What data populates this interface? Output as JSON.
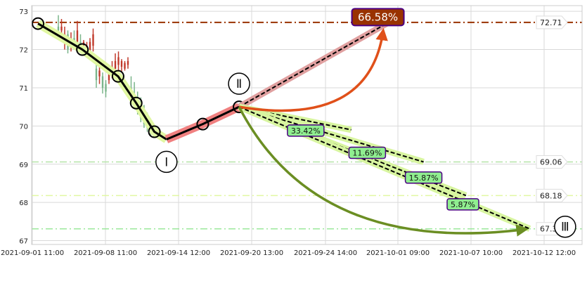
{
  "chart_data": {
    "type": "candlestick",
    "x_axis": {
      "type": "time",
      "ticks": [
        "2021-09-01 11:00",
        "2021-09-08 11:00",
        "2021-09-14 12:00",
        "2021-09-20 13:00",
        "2021-09-24 14:00",
        "2021-10-01 09:00",
        "2021-10-07 10:00",
        "2021-10-12 12:00"
      ]
    },
    "y_axis": {
      "ticks": [
        "67",
        "68",
        "69",
        "70",
        "71",
        "72",
        "73"
      ],
      "ylim": [
        66.9,
        73.15
      ]
    },
    "grid": true,
    "candles": [
      {
        "o": 72.6,
        "h": 72.9,
        "l": 72.3,
        "c": 72.5
      },
      {
        "o": 72.5,
        "h": 72.8,
        "l": 72.3,
        "c": 72.6
      },
      {
        "o": 72.3,
        "h": 72.6,
        "l": 72.0,
        "c": 72.4
      },
      {
        "o": 72.4,
        "h": 72.5,
        "l": 71.9,
        "c": 72.0
      },
      {
        "o": 72.1,
        "h": 72.45,
        "l": 71.95,
        "c": 72.3
      },
      {
        "o": 72.3,
        "h": 72.5,
        "l": 72.0,
        "c": 72.1
      },
      {
        "o": 72.2,
        "h": 72.75,
        "l": 72.05,
        "c": 72.5
      },
      {
        "o": 72.2,
        "h": 72.4,
        "l": 71.95,
        "c": 72.05
      },
      {
        "o": 72.1,
        "h": 72.25,
        "l": 71.9,
        "c": 72.2
      },
      {
        "o": 72.0,
        "h": 72.2,
        "l": 71.85,
        "c": 72.1
      },
      {
        "o": 71.95,
        "h": 72.3,
        "l": 71.8,
        "c": 72.2
      },
      {
        "o": 72.1,
        "h": 72.55,
        "l": 71.95,
        "c": 72.4
      },
      {
        "o": 71.5,
        "h": 71.65,
        "l": 71.0,
        "c": 71.2
      },
      {
        "o": 71.3,
        "h": 71.55,
        "l": 71.1,
        "c": 71.45
      },
      {
        "o": 71.3,
        "h": 71.4,
        "l": 70.85,
        "c": 71.0
      },
      {
        "o": 71.1,
        "h": 71.2,
        "l": 70.75,
        "c": 70.9
      },
      {
        "o": 71.2,
        "h": 71.55,
        "l": 71.1,
        "c": 71.4
      },
      {
        "o": 71.35,
        "h": 71.7,
        "l": 71.25,
        "c": 71.55
      },
      {
        "o": 71.5,
        "h": 71.9,
        "l": 71.3,
        "c": 71.7
      },
      {
        "o": 71.6,
        "h": 71.95,
        "l": 71.45,
        "c": 71.8
      },
      {
        "o": 71.55,
        "h": 71.75,
        "l": 71.4,
        "c": 71.7
      },
      {
        "o": 71.5,
        "h": 71.7,
        "l": 71.45,
        "c": 71.65
      },
      {
        "o": 71.6,
        "h": 71.8,
        "l": 71.5,
        "c": 71.7
      },
      {
        "o": 71.0,
        "h": 71.3,
        "l": 70.55,
        "c": 70.7
      },
      {
        "o": 70.8,
        "h": 71.15,
        "l": 70.45,
        "c": 70.6
      },
      {
        "o": 70.6,
        "h": 70.9,
        "l": 70.3,
        "c": 70.5
      },
      {
        "o": 70.4,
        "h": 70.75,
        "l": 70.1,
        "c": 70.2
      },
      {
        "o": 70.2,
        "h": 70.55,
        "l": 69.95,
        "c": 70.05
      },
      {
        "o": 70.1,
        "h": 70.35,
        "l": 69.85,
        "c": 69.95
      },
      {
        "o": 69.95,
        "h": 70.2,
        "l": 69.75,
        "c": 69.85
      },
      {
        "o": 69.8,
        "h": 70.05,
        "l": 69.7,
        "c": 69.75
      }
    ],
    "price_levels": [
      {
        "value": 72.71,
        "label": "72.71",
        "color": "#993300",
        "style": "dashdot"
      },
      {
        "value": 69.06,
        "label": "69.06",
        "color": "#b5e3a8",
        "style": "dashdot"
      },
      {
        "value": 68.18,
        "label": "68.18",
        "color": "#e1f7a2",
        "style": "dashdot"
      },
      {
        "value": 67.31,
        "label": "67.31",
        "color": "#9be89b",
        "style": "dashdot"
      }
    ],
    "wave_labels": [
      {
        "label": "Ⅰ",
        "x": "2021-09-13 12:00",
        "y": 69.65
      },
      {
        "label": "Ⅱ",
        "x": "2021-09-19 12:00",
        "y": 70.5
      },
      {
        "label": "Ⅲ",
        "x": "2021-10-12 06:00",
        "y": 67.31
      }
    ],
    "targets": [
      {
        "label": "66.58%",
        "from": 70.5,
        "to": 72.71
      },
      {
        "label": "33.42%",
        "from": 70.5,
        "to": 69.9
      },
      {
        "label": "11.69%",
        "from": 70.5,
        "to": 69.06
      },
      {
        "label": "15.87%",
        "from": 70.5,
        "to": 68.18
      },
      {
        "label": "5.87%",
        "from": 70.5,
        "to": 67.31
      }
    ],
    "colors": {
      "up_candle": "#c0392b",
      "down_candle": "#7ab58a",
      "down_trend": "#000000",
      "down_trend_glow": "#e1f7a2",
      "up_trend_glow": "#f08080",
      "red_arrow": "#e0501a",
      "green_arrow": "#6b8e23",
      "big_label_bg": "#993300",
      "small_label_bg": "#90ee90",
      "label_border": "#4b0082"
    }
  }
}
